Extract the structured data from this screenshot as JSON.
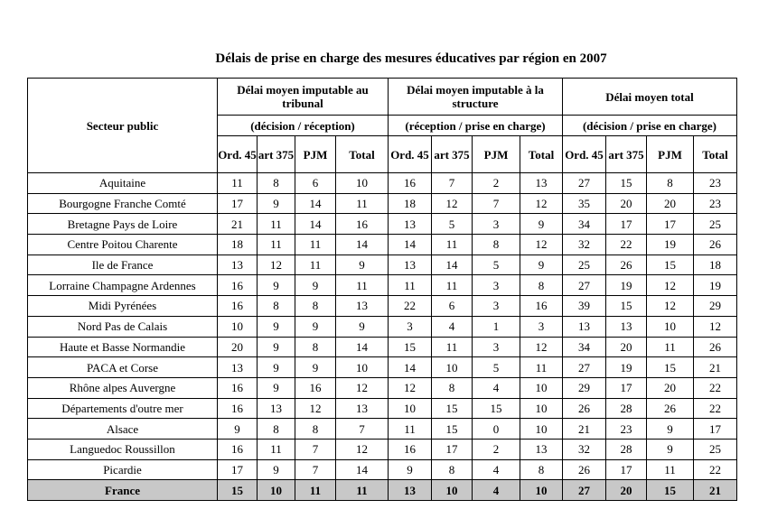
{
  "title": "Délais de prise en charge des mesures éducatives par région en 2007",
  "header": {
    "sector": "Secteur public",
    "groups": [
      {
        "label": "Délai moyen imputable au tribunal",
        "sub": "(décision / réception)"
      },
      {
        "label": "Délai moyen imputable à la structure",
        "sub": "(réception / prise en charge)"
      },
      {
        "label": "Délai moyen total",
        "sub": "(décision / prise en charge)"
      }
    ],
    "columns": [
      "Ord. 45",
      "art 375",
      "PJM",
      "Total"
    ]
  },
  "rows": [
    {
      "region": "Aquitaine",
      "values": [
        11,
        8,
        6,
        10,
        16,
        7,
        2,
        13,
        27,
        15,
        8,
        23
      ]
    },
    {
      "region": "Bourgogne Franche Comté",
      "values": [
        17,
        9,
        14,
        11,
        18,
        12,
        7,
        12,
        35,
        20,
        20,
        23
      ]
    },
    {
      "region": "Bretagne Pays de Loire",
      "values": [
        21,
        11,
        14,
        16,
        13,
        5,
        3,
        9,
        34,
        17,
        17,
        25
      ]
    },
    {
      "region": "Centre Poitou Charente",
      "values": [
        18,
        11,
        11,
        14,
        14,
        11,
        8,
        12,
        32,
        22,
        19,
        26
      ]
    },
    {
      "region": "Ile de France",
      "values": [
        13,
        12,
        11,
        9,
        13,
        14,
        5,
        9,
        25,
        26,
        15,
        18
      ]
    },
    {
      "region": "Lorraine Champagne Ardennes",
      "values": [
        16,
        9,
        9,
        11,
        11,
        11,
        3,
        8,
        27,
        19,
        12,
        19
      ]
    },
    {
      "region": "Midi Pyrénées",
      "values": [
        16,
        8,
        8,
        13,
        22,
        6,
        3,
        16,
        39,
        15,
        12,
        29
      ]
    },
    {
      "region": "Nord Pas de Calais",
      "values": [
        10,
        9,
        9,
        9,
        3,
        4,
        1,
        3,
        13,
        13,
        10,
        12
      ]
    },
    {
      "region": "Haute et Basse Normandie",
      "values": [
        20,
        9,
        8,
        14,
        15,
        11,
        3,
        12,
        34,
        20,
        11,
        26
      ]
    },
    {
      "region": "PACA et Corse",
      "values": [
        13,
        9,
        9,
        10,
        14,
        10,
        5,
        11,
        27,
        19,
        15,
        21
      ]
    },
    {
      "region": "Rhône alpes Auvergne",
      "values": [
        16,
        9,
        16,
        12,
        12,
        8,
        4,
        10,
        29,
        17,
        20,
        22
      ]
    },
    {
      "region": "Départements d'outre mer",
      "values": [
        16,
        13,
        12,
        13,
        10,
        15,
        15,
        10,
        26,
        28,
        26,
        22
      ]
    },
    {
      "region": "Alsace",
      "values": [
        9,
        8,
        8,
        7,
        11,
        15,
        0,
        10,
        21,
        23,
        9,
        17
      ]
    },
    {
      "region": "Languedoc Roussillon",
      "values": [
        16,
        11,
        7,
        12,
        16,
        17,
        2,
        13,
        32,
        28,
        9,
        25
      ]
    },
    {
      "region": "Picardie",
      "values": [
        17,
        9,
        7,
        14,
        9,
        8,
        4,
        8,
        26,
        17,
        11,
        22
      ]
    }
  ],
  "total": {
    "region": "France",
    "values": [
      15,
      10,
      11,
      11,
      13,
      10,
      4,
      10,
      27,
      20,
      15,
      21
    ]
  },
  "colors": {
    "total_row_bg": "#c8c8c8"
  }
}
